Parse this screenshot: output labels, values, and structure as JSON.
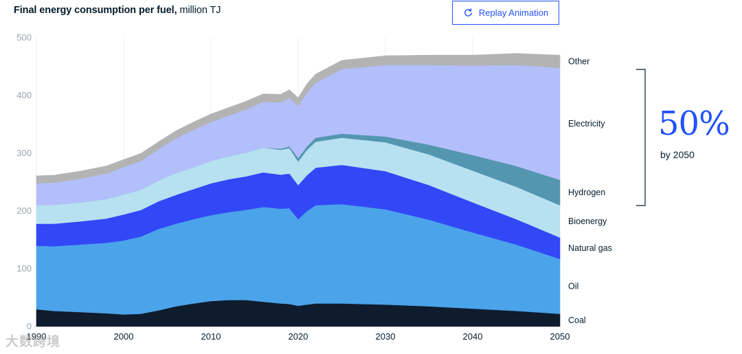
{
  "header": {
    "title_bold": "Final energy consumption per fuel,",
    "title_unit": "million TJ",
    "replay_label": "Replay Animation"
  },
  "callout": {
    "value": "50%",
    "caption": "by 2050"
  },
  "watermark": "大数跨境",
  "colors": {
    "coal": "#0e1c2e",
    "oil": "#4ba3ea",
    "natural_gas": "#3248f6",
    "bioenergy": "#b7e1f0",
    "hydrogen": "#5495b0",
    "electricity": "#b2bffa",
    "other": "#b3b3b3",
    "accent": "#2251ff"
  },
  "chart_data": {
    "type": "area",
    "stacked": true,
    "title": "Final energy consumption per fuel, million TJ",
    "ylabel": "",
    "xlabel": "",
    "ylim": [
      0,
      500
    ],
    "xlim": [
      1990,
      2050
    ],
    "yticks": [
      0,
      100,
      200,
      300,
      400,
      500
    ],
    "xticks": [
      1990,
      2000,
      2010,
      2020,
      2030,
      2040,
      2050
    ],
    "grid": "vertical",
    "legend_position": "right",
    "x": [
      1990,
      1992,
      1995,
      1998,
      2000,
      2002,
      2004,
      2006,
      2008,
      2010,
      2012,
      2014,
      2016,
      2018,
      2019,
      2020,
      2021,
      2022,
      2025,
      2030,
      2035,
      2040,
      2045,
      2050
    ],
    "series": [
      {
        "name": "Coal",
        "color": "#0e1c2e",
        "values": [
          30,
          27,
          25,
          23,
          21,
          22,
          28,
          35,
          40,
          44,
          46,
          46,
          43,
          40,
          39,
          36,
          38,
          40,
          40,
          38,
          35,
          31,
          27,
          22
        ]
      },
      {
        "name": "Oil",
        "color": "#4ba3ea",
        "values": [
          110,
          112,
          117,
          122,
          128,
          134,
          141,
          143,
          146,
          149,
          152,
          156,
          164,
          164,
          166,
          150,
          162,
          170,
          172,
          165,
          150,
          132,
          115,
          95
        ]
      },
      {
        "name": "Natural gas",
        "color": "#3248f6",
        "values": [
          38,
          39,
          40,
          42,
          45,
          46,
          48,
          50,
          52,
          55,
          57,
          58,
          60,
          59,
          60,
          59,
          62,
          65,
          68,
          66,
          60,
          52,
          44,
          37
        ]
      },
      {
        "name": "Bioenergy",
        "color": "#b7e1f0",
        "values": [
          33,
          33,
          33,
          34,
          35,
          35,
          36,
          38,
          38,
          39,
          40,
          41,
          43,
          43,
          44,
          41,
          44,
          45,
          47,
          50,
          53,
          55,
          56,
          56
        ]
      },
      {
        "name": "Hydrogen",
        "color": "#5495b0",
        "values": [
          0,
          0,
          0,
          0,
          0,
          0,
          0,
          0,
          0,
          0,
          0,
          0,
          0,
          2,
          3,
          6,
          6,
          7,
          7,
          10,
          17,
          27,
          36,
          44
        ]
      },
      {
        "name": "Electricity",
        "color": "#b2bffa",
        "values": [
          37,
          38,
          41,
          44,
          47,
          50,
          54,
          60,
          65,
          67,
          70,
          75,
          79,
          80,
          84,
          90,
          93,
          95,
          112,
          124,
          138,
          155,
          175,
          194
        ]
      },
      {
        "name": "Other",
        "color": "#b3b3b3",
        "values": [
          13,
          13,
          13,
          13,
          13,
          13,
          13,
          13,
          13,
          14,
          14,
          14,
          14,
          14,
          14,
          14,
          15,
          15,
          15,
          16,
          17,
          18,
          20,
          22
        ]
      }
    ],
    "annotation": {
      "bracket_series": [
        "Electricity",
        "Hydrogen"
      ],
      "label": "50%",
      "sublabel": "by 2050"
    }
  }
}
